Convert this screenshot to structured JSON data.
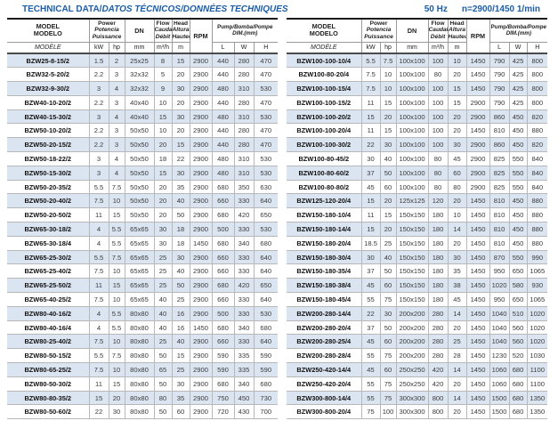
{
  "page": {
    "title_normal": "TECHNICAL DATA/",
    "title_italic": "DATOS TÉCNICOS/DONNÉES TECHNIQUES",
    "frequency": "50 Hz",
    "speed": "n=2900/1450 1/min"
  },
  "colors": {
    "accent_blue": "#1c5ea9",
    "row_shade": "#dbe5f1"
  },
  "header": {
    "model": [
      "MODEL",
      "MODELO"
    ],
    "model_it": "MODÈLE",
    "power": [
      "Power",
      "Potencia",
      "Puissance"
    ],
    "dn": "DN",
    "flow": [
      "Flow",
      "Caudal",
      "Débit"
    ],
    "head": [
      "Head",
      "Altura",
      "Hauteur"
    ],
    "rpm": "RPM",
    "dim_line1_normal": "Pump",
    "dim_line1_italic": "/Bomba/Pompe",
    "dim_line2": "DIM.(mm)",
    "units": [
      "kW",
      "hp",
      "mm",
      "m³/h",
      "m",
      "L",
      "W",
      "H"
    ]
  },
  "tables": [
    {
      "rows": [
        [
          "BZW25-8-15/2",
          "1.5",
          "2",
          "25x25",
          "8",
          "15",
          "2900",
          "440",
          "280",
          "470"
        ],
        [
          "BZW32-5-20/2",
          "2.2",
          "3",
          "32x32",
          "5",
          "20",
          "2900",
          "440",
          "280",
          "470"
        ],
        [
          "BZW32-9-30/2",
          "3",
          "4",
          "32x32",
          "9",
          "30",
          "2900",
          "480",
          "310",
          "530"
        ],
        [
          "BZW40-10-20/2",
          "2.2",
          "3",
          "40x40",
          "10",
          "20",
          "2900",
          "440",
          "280",
          "470"
        ],
        [
          "BZW40-15-30/2",
          "3",
          "4",
          "40x40",
          "15",
          "30",
          "2900",
          "480",
          "310",
          "530"
        ],
        [
          "BZW50-10-20/2",
          "2.2",
          "3",
          "50x50",
          "10",
          "20",
          "2900",
          "440",
          "280",
          "470"
        ],
        [
          "BZW50-20-15/2",
          "2.2",
          "3",
          "50x50",
          "20",
          "15",
          "2900",
          "440",
          "280",
          "470"
        ],
        [
          "BZW50-18-22/2",
          "3",
          "4",
          "50x50",
          "18",
          "22",
          "2900",
          "480",
          "310",
          "530"
        ],
        [
          "BZW50-15-30/2",
          "3",
          "4",
          "50x50",
          "15",
          "30",
          "2900",
          "480",
          "310",
          "530"
        ],
        [
          "BZW50-20-35/2",
          "5.5",
          "7.5",
          "50x50",
          "20",
          "35",
          "2900",
          "680",
          "350",
          "630"
        ],
        [
          "BZW50-20-40/2",
          "7.5",
          "10",
          "50x50",
          "20",
          "40",
          "2900",
          "660",
          "330",
          "640"
        ],
        [
          "BZW50-20-50/2",
          "11",
          "15",
          "50x50",
          "20",
          "50",
          "2900",
          "680",
          "420",
          "650"
        ],
        [
          "BZW65-30-18/2",
          "4",
          "5.5",
          "65x65",
          "30",
          "18",
          "2900",
          "500",
          "330",
          "530"
        ],
        [
          "BZW65-30-18/4",
          "4",
          "5.5",
          "65x65",
          "30",
          "18",
          "1450",
          "680",
          "340",
          "680"
        ],
        [
          "BZW65-25-30/2",
          "5.5",
          "7.5",
          "65x65",
          "25",
          "30",
          "2900",
          "660",
          "330",
          "640"
        ],
        [
          "BZW65-25-40/2",
          "7.5",
          "10",
          "65x65",
          "25",
          "40",
          "2900",
          "660",
          "330",
          "640"
        ],
        [
          "BZW65-25-50/2",
          "11",
          "15",
          "65x65",
          "25",
          "50",
          "2900",
          "680",
          "420",
          "650"
        ],
        [
          "BZW65-40-25/2",
          "7.5",
          "10",
          "65x65",
          "40",
          "25",
          "2900",
          "660",
          "330",
          "640"
        ],
        [
          "BZW80-40-16/2",
          "4",
          "5.5",
          "80x80",
          "40",
          "16",
          "2900",
          "500",
          "330",
          "530"
        ],
        [
          "BZW80-40-16/4",
          "4",
          "5.5",
          "80x80",
          "40",
          "16",
          "1450",
          "680",
          "340",
          "680"
        ],
        [
          "BZW80-25-40/2",
          "7.5",
          "10",
          "80x80",
          "25",
          "40",
          "2900",
          "660",
          "330",
          "640"
        ],
        [
          "BZW80-50-15/2",
          "5.5",
          "7.5",
          "80x80",
          "50",
          "15",
          "2900",
          "590",
          "335",
          "590"
        ],
        [
          "BZW80-65-25/2",
          "7.5",
          "10",
          "80x80",
          "65",
          "25",
          "2900",
          "590",
          "335",
          "590"
        ],
        [
          "BZW80-50-30/2",
          "11",
          "15",
          "80x80",
          "50",
          "30",
          "2900",
          "680",
          "340",
          "680"
        ],
        [
          "BZW80-80-35/2",
          "15",
          "20",
          "80x80",
          "80",
          "35",
          "2900",
          "750",
          "450",
          "730"
        ],
        [
          "BZW80-50-60/2",
          "22",
          "30",
          "80x80",
          "50",
          "60",
          "2900",
          "720",
          "430",
          "700"
        ]
      ]
    },
    {
      "rows": [
        [
          "BZW100-100-10/4",
          "5.5",
          "7.5",
          "100x100",
          "100",
          "10",
          "1450",
          "790",
          "425",
          "800"
        ],
        [
          "BZW100-80-20/4",
          "7.5",
          "10",
          "100x100",
          "80",
          "20",
          "1450",
          "790",
          "425",
          "800"
        ],
        [
          "BZW100-100-15/4",
          "7.5",
          "10",
          "100x100",
          "100",
          "15",
          "1450",
          "790",
          "425",
          "800"
        ],
        [
          "BZW100-100-15/2",
          "11",
          "15",
          "100x100",
          "100",
          "15",
          "2900",
          "790",
          "425",
          "800"
        ],
        [
          "BZW100-100-20/2",
          "15",
          "20",
          "100x100",
          "100",
          "20",
          "2900",
          "860",
          "450",
          "820"
        ],
        [
          "BZW100-100-20/4",
          "11",
          "15",
          "100x100",
          "100",
          "20",
          "1450",
          "810",
          "450",
          "880"
        ],
        [
          "BZW100-100-30/2",
          "22",
          "30",
          "100x100",
          "100",
          "30",
          "2900",
          "860",
          "450",
          "820"
        ],
        [
          "BZW100-80-45/2",
          "30",
          "40",
          "100x100",
          "80",
          "45",
          "2900",
          "825",
          "550",
          "840"
        ],
        [
          "BZW100-80-60/2",
          "37",
          "50",
          "100x100",
          "80",
          "60",
          "2900",
          "825",
          "550",
          "840"
        ],
        [
          "BZW100-80-80/2",
          "45",
          "60",
          "100x100",
          "80",
          "80",
          "2900",
          "825",
          "550",
          "840"
        ],
        [
          "BZW125-120-20/4",
          "15",
          "20",
          "125x125",
          "120",
          "20",
          "1450",
          "810",
          "450",
          "880"
        ],
        [
          "BZW150-180-10/4",
          "11",
          "15",
          "150x150",
          "180",
          "10",
          "1450",
          "810",
          "450",
          "880"
        ],
        [
          "BZW150-180-14/4",
          "15",
          "20",
          "150x150",
          "180",
          "14",
          "1450",
          "810",
          "450",
          "880"
        ],
        [
          "BZW150-180-20/4",
          "18.5",
          "25",
          "150x150",
          "180",
          "20",
          "1450",
          "810",
          "450",
          "880"
        ],
        [
          "BZW150-180-30/4",
          "30",
          "40",
          "150x150",
          "180",
          "30",
          "1450",
          "870",
          "550",
          "990"
        ],
        [
          "BZW150-180-35/4",
          "37",
          "50",
          "150x150",
          "180",
          "35",
          "1450",
          "950",
          "650",
          "1065"
        ],
        [
          "BZW150-180-38/4",
          "45",
          "60",
          "150x150",
          "180",
          "38",
          "1450",
          "1020",
          "580",
          "930"
        ],
        [
          "BZW150-180-45/4",
          "55",
          "75",
          "150x150",
          "180",
          "45",
          "1450",
          "950",
          "650",
          "1065"
        ],
        [
          "BZW200-280-14/4",
          "22",
          "30",
          "200x200",
          "280",
          "14",
          "1450",
          "1040",
          "510",
          "1020"
        ],
        [
          "BZW200-280-20/4",
          "37",
          "50",
          "200x200",
          "280",
          "20",
          "1450",
          "1040",
          "560",
          "1020"
        ],
        [
          "BZW200-280-25/4",
          "45",
          "60",
          "200x200",
          "280",
          "25",
          "1450",
          "1040",
          "560",
          "1020"
        ],
        [
          "BZW200-280-28/4",
          "55",
          "75",
          "200x200",
          "280",
          "28",
          "1450",
          "1230",
          "520",
          "1030"
        ],
        [
          "BZW250-420-14/4",
          "45",
          "60",
          "250x250",
          "420",
          "14",
          "1450",
          "1060",
          "680",
          "1100"
        ],
        [
          "BZW250-420-20/4",
          "55",
          "75",
          "250x250",
          "420",
          "20",
          "1450",
          "1060",
          "680",
          "1100"
        ],
        [
          "BZW300-800-14/4",
          "55",
          "75",
          "300x300",
          "800",
          "14",
          "1450",
          "1500",
          "680",
          "1350"
        ],
        [
          "BZW300-800-20/4",
          "75",
          "100",
          "300x300",
          "800",
          "20",
          "1450",
          "1500",
          "680",
          "1350"
        ]
      ]
    }
  ]
}
